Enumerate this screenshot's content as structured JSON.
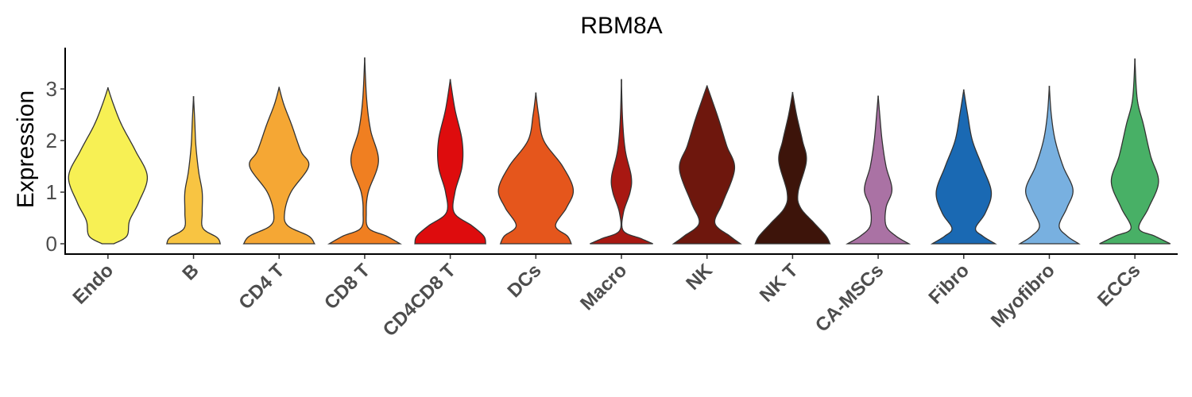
{
  "chart_data": {
    "type": "violin",
    "title": "RBM8A",
    "ylabel": "Expression",
    "xlabel": "",
    "ylim": [
      -0.18,
      3.8
    ],
    "yticks": [
      0,
      1,
      2,
      3
    ],
    "grid": false,
    "legend": "none",
    "series": [
      {
        "category": "Endo",
        "color": "#F7F054",
        "max": 3.02,
        "nodes": [
          [
            0,
            0.15
          ],
          [
            0.15,
            0.48
          ],
          [
            0.45,
            0.55
          ],
          [
            0.8,
            0.78
          ],
          [
            1.3,
            1.0
          ],
          [
            1.8,
            0.7
          ],
          [
            2.3,
            0.35
          ],
          [
            2.7,
            0.14
          ],
          [
            3.02,
            0
          ]
        ]
      },
      {
        "category": "B",
        "color": "#F8C442",
        "max": 2.85,
        "nodes": [
          [
            0,
            0.68
          ],
          [
            0.12,
            0.6
          ],
          [
            0.3,
            0.24
          ],
          [
            0.6,
            0.22
          ],
          [
            1.0,
            0.22
          ],
          [
            1.4,
            0.13
          ],
          [
            1.9,
            0.06
          ],
          [
            2.4,
            0.03
          ],
          [
            2.85,
            0
          ]
        ]
      },
      {
        "category": "CD4 T",
        "color": "#F5A734",
        "max": 3.03,
        "nodes": [
          [
            0,
            0.9
          ],
          [
            0.15,
            0.75
          ],
          [
            0.35,
            0.22
          ],
          [
            0.6,
            0.14
          ],
          [
            1.0,
            0.3
          ],
          [
            1.5,
            0.75
          ],
          [
            1.8,
            0.55
          ],
          [
            2.3,
            0.32
          ],
          [
            2.7,
            0.12
          ],
          [
            3.03,
            0
          ]
        ]
      },
      {
        "category": "CD8 T",
        "color": "#F07F21",
        "max": 3.6,
        "nodes": [
          [
            0,
            0.9
          ],
          [
            0.15,
            0.55
          ],
          [
            0.3,
            0.1
          ],
          [
            0.6,
            0.04
          ],
          [
            1.0,
            0.09
          ],
          [
            1.6,
            0.35
          ],
          [
            2.2,
            0.15
          ],
          [
            2.8,
            0.05
          ],
          [
            3.6,
            0
          ]
        ]
      },
      {
        "category": "CD4CD8 T",
        "color": "#DE0C0D",
        "max": 3.18,
        "nodes": [
          [
            0,
            0.9
          ],
          [
            0.15,
            0.85
          ],
          [
            0.35,
            0.55
          ],
          [
            0.6,
            0.1
          ],
          [
            1.0,
            0.12
          ],
          [
            1.5,
            0.3
          ],
          [
            2.0,
            0.3
          ],
          [
            2.6,
            0.12
          ],
          [
            3.18,
            0
          ]
        ]
      },
      {
        "category": "DCs",
        "color": "#E5561C",
        "max": 2.92,
        "nodes": [
          [
            0,
            0.9
          ],
          [
            0.15,
            0.8
          ],
          [
            0.35,
            0.5
          ],
          [
            0.7,
            0.78
          ],
          [
            1.05,
            0.95
          ],
          [
            1.5,
            0.68
          ],
          [
            2.0,
            0.2
          ],
          [
            2.5,
            0.07
          ],
          [
            2.92,
            0
          ]
        ]
      },
      {
        "category": "Macro",
        "color": "#A81812",
        "max": 3.18,
        "nodes": [
          [
            0,
            0.8
          ],
          [
            0.1,
            0.5
          ],
          [
            0.25,
            0.05
          ],
          [
            0.6,
            0.05
          ],
          [
            1.0,
            0.22
          ],
          [
            1.3,
            0.25
          ],
          [
            1.8,
            0.1
          ],
          [
            2.4,
            0.03
          ],
          [
            3.18,
            0
          ]
        ]
      },
      {
        "category": "NK",
        "color": "#6E170D",
        "max": 3.06,
        "nodes": [
          [
            0,
            0.85
          ],
          [
            0.15,
            0.58
          ],
          [
            0.4,
            0.2
          ],
          [
            0.8,
            0.4
          ],
          [
            1.45,
            0.7
          ],
          [
            1.9,
            0.5
          ],
          [
            2.4,
            0.3
          ],
          [
            2.8,
            0.12
          ],
          [
            3.06,
            0
          ]
        ]
      },
      {
        "category": "NK T",
        "color": "#3D140A",
        "max": 2.93,
        "nodes": [
          [
            0,
            0.95
          ],
          [
            0.15,
            0.85
          ],
          [
            0.4,
            0.55
          ],
          [
            0.7,
            0.2
          ],
          [
            1.0,
            0.14
          ],
          [
            1.6,
            0.35
          ],
          [
            2.0,
            0.25
          ],
          [
            2.5,
            0.1
          ],
          [
            2.93,
            0
          ]
        ]
      },
      {
        "category": "CA-MSCs",
        "color": "#AA72A4",
        "max": 2.86,
        "nodes": [
          [
            0,
            0.78
          ],
          [
            0.15,
            0.45
          ],
          [
            0.35,
            0.2
          ],
          [
            0.7,
            0.2
          ],
          [
            1.05,
            0.35
          ],
          [
            1.5,
            0.2
          ],
          [
            2.0,
            0.1
          ],
          [
            2.5,
            0.04
          ],
          [
            2.86,
            0
          ]
        ]
      },
      {
        "category": "Fibro",
        "color": "#1A69B3",
        "max": 2.98,
        "nodes": [
          [
            0,
            0.8
          ],
          [
            0.15,
            0.48
          ],
          [
            0.3,
            0.3
          ],
          [
            0.6,
            0.55
          ],
          [
            1.0,
            0.7
          ],
          [
            1.5,
            0.47
          ],
          [
            2.0,
            0.22
          ],
          [
            2.5,
            0.1
          ],
          [
            2.98,
            0
          ]
        ]
      },
      {
        "category": "Myofibro",
        "color": "#78B0E0",
        "max": 3.05,
        "nodes": [
          [
            0,
            0.75
          ],
          [
            0.15,
            0.45
          ],
          [
            0.35,
            0.25
          ],
          [
            0.7,
            0.45
          ],
          [
            1.05,
            0.6
          ],
          [
            1.5,
            0.35
          ],
          [
            2.0,
            0.15
          ],
          [
            2.5,
            0.05
          ],
          [
            3.05,
            0
          ]
        ]
      },
      {
        "category": "ECCs",
        "color": "#48B066",
        "max": 3.58,
        "nodes": [
          [
            0,
            0.9
          ],
          [
            0.15,
            0.5
          ],
          [
            0.3,
            0.1
          ],
          [
            0.7,
            0.35
          ],
          [
            1.2,
            0.6
          ],
          [
            1.7,
            0.4
          ],
          [
            2.3,
            0.22
          ],
          [
            2.8,
            0.06
          ],
          [
            3.58,
            0
          ]
        ]
      }
    ]
  }
}
